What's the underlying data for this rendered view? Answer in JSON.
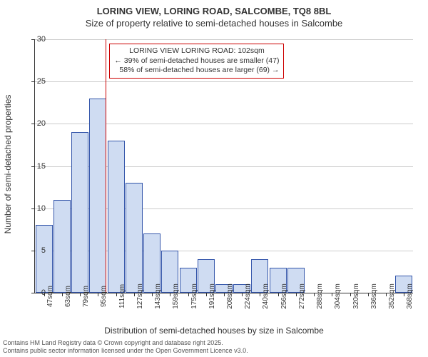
{
  "chart": {
    "type": "histogram",
    "title_main": "LORING VIEW, LORING ROAD, SALCOMBE, TQ8 8BL",
    "title_sub": "Size of property relative to semi-detached houses in Salcombe",
    "y_axis_label": "Number of semi-detached properties",
    "x_axis_label": "Distribution of semi-detached houses by size in Salcombe",
    "ylim": [
      0,
      30
    ],
    "ytick_step": 5,
    "yticks": [
      0,
      5,
      10,
      15,
      20,
      25,
      30
    ],
    "x_categories": [
      "47sqm",
      "63sqm",
      "79sqm",
      "95sqm",
      "111sqm",
      "127sqm",
      "143sqm",
      "159sqm",
      "175sqm",
      "191sqm",
      "208sqm",
      "224sqm",
      "240sqm",
      "256sqm",
      "272sqm",
      "288sqm",
      "304sqm",
      "320sqm",
      "336sqm",
      "352sqm",
      "368sqm"
    ],
    "values": [
      8,
      11,
      19,
      23,
      18,
      13,
      7,
      5,
      3,
      4,
      1,
      1,
      4,
      3,
      3,
      0,
      0,
      0,
      0,
      0,
      2
    ],
    "bar_fill": "#cfdcf2",
    "bar_stroke": "#3355aa",
    "grid_color": "#cccccc",
    "background": "#ffffff",
    "marker_value_sqm": 102,
    "marker_color": "#cc0000",
    "annotation": {
      "line1": "LORING VIEW LORING ROAD: 102sqm",
      "line2": "← 39% of semi-detached houses are smaller (47)",
      "line3": "58% of semi-detached houses are larger (69) →"
    },
    "footer_line1": "Contains HM Land Registry data © Crown copyright and database right 2025.",
    "footer_line2": "Contains public sector information licensed under the Open Government Licence v3.0."
  }
}
